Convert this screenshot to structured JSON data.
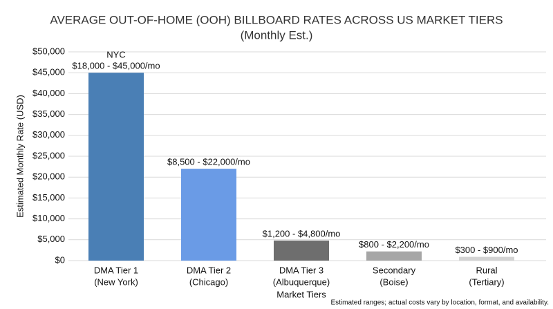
{
  "chart_data": {
    "type": "bar",
    "title": "AVERAGE OUT-OF-HOME (OOH) BILLBOARD RATES ACROSS US MARKET TIERS",
    "subtitle": "(Monthly Est.)",
    "x_label": "Market Tiers",
    "y_label": "Estimated Monthly Rate (USD)",
    "note": "Estimated ranges; actual costs vary by location, format, and availability.",
    "annotation": "NYC",
    "categories": [
      [
        "DMA Tier 1",
        "(New York)"
      ],
      [
        "DMA Tier 2",
        "(Chicago)"
      ],
      [
        "DMA Tier 3",
        "(Albuquerque)"
      ],
      [
        "Secondary",
        "(Boise)"
      ],
      [
        "Rural",
        "(Tertiary)"
      ]
    ],
    "values": [
      45000,
      22000,
      4800,
      2200,
      900
    ],
    "value_labels": [
      "$18,000 - $45,000/mo",
      "$8,500 - $22,000/mo",
      "$1,200 - $4,800/mo",
      "$800 - $2,200/mo",
      "$300 - $900/mo"
    ],
    "colors": [
      "#4a7fb5",
      "#6a9be6",
      "#6e6e6e",
      "#a6a6a6",
      "#d3d3d3"
    ],
    "ylim": [
      0,
      50000
    ],
    "yticks": [
      {
        "value": 0,
        "label": "$0"
      },
      {
        "value": 5000,
        "label": "$5,000"
      },
      {
        "value": 10000,
        "label": "$10,000"
      },
      {
        "value": 15000,
        "label": "$15,000"
      },
      {
        "value": 20000,
        "label": "$20,000"
      },
      {
        "value": 25000,
        "label": "$25,000"
      },
      {
        "value": 30000,
        "label": "$30,000"
      },
      {
        "value": 35000,
        "label": "$35,000"
      },
      {
        "value": 40000,
        "label": "$40,000"
      },
      {
        "value": 45000,
        "label": "$45,000"
      },
      {
        "value": 50000,
        "label": "$50,000"
      }
    ],
    "grid": true
  }
}
